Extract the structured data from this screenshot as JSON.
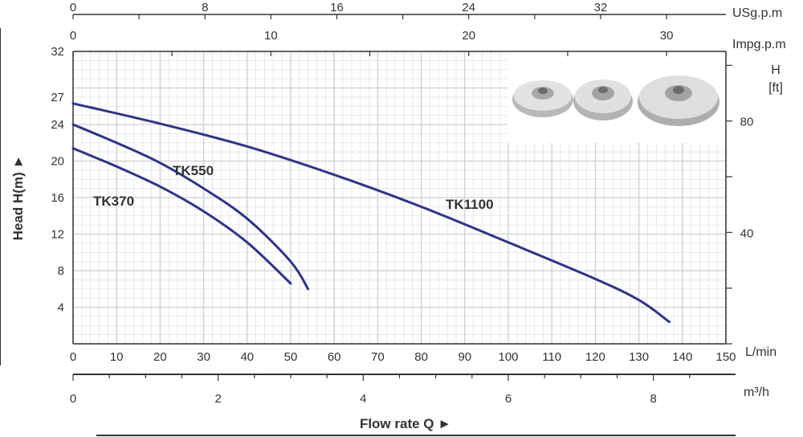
{
  "chart_data": {
    "type": "line",
    "colors": {
      "curve": "#2e3586",
      "grid": "#cfcfcf",
      "frame": "#333333"
    },
    "x": {
      "label": "Flow rate Q ►",
      "range": [
        0,
        150
      ],
      "ticks": [
        0,
        10,
        20,
        30,
        40,
        50,
        60,
        70,
        80,
        90,
        100,
        110,
        120,
        130,
        140,
        150
      ],
      "unit": "L/min"
    },
    "x_m3h": {
      "unit": "m³/h",
      "range": [
        0,
        9
      ],
      "ticks": [
        0,
        2,
        4,
        6,
        8
      ]
    },
    "x_usgpm": {
      "unit": "USg.p.m",
      "range": [
        0,
        39.6
      ],
      "ticks": [
        0,
        8,
        16,
        24,
        32
      ]
    },
    "x_impgpm": {
      "unit": "Impg.p.m",
      "range": [
        0,
        33
      ],
      "ticks": [
        0,
        10,
        20,
        30
      ]
    },
    "y": {
      "label": "Head H(m) ►",
      "range": [
        0,
        32
      ],
      "ticks": [
        4,
        8,
        12,
        16,
        20,
        24,
        27,
        32
      ]
    },
    "y_ft": {
      "unit_line1": "H",
      "unit_line2": "[ft]",
      "range": [
        0,
        105
      ],
      "labeled_ticks": [
        40,
        80
      ]
    },
    "series": [
      {
        "name": "TK370",
        "points": [
          [
            0,
            21.4
          ],
          [
            10,
            19.4
          ],
          [
            20,
            17.2
          ],
          [
            30,
            14.5
          ],
          [
            40,
            11.1
          ],
          [
            50,
            6.6
          ]
        ]
      },
      {
        "name": "TK550",
        "points": [
          [
            0,
            24.0
          ],
          [
            10,
            22.0
          ],
          [
            20,
            19.8
          ],
          [
            30,
            17.0
          ],
          [
            40,
            13.7
          ],
          [
            50,
            9.0
          ],
          [
            54,
            6.0
          ]
        ]
      },
      {
        "name": "TK1100",
        "points": [
          [
            0,
            26.3
          ],
          [
            20,
            24.1
          ],
          [
            40,
            21.6
          ],
          [
            60,
            18.5
          ],
          [
            80,
            15.0
          ],
          [
            100,
            11.1
          ],
          [
            120,
            7.1
          ],
          [
            130,
            4.8
          ],
          [
            137,
            2.4
          ]
        ]
      }
    ],
    "grid": true
  },
  "image": {
    "name": "impellers-photo",
    "items": [
      "impeller-small",
      "impeller-medium",
      "impeller-large"
    ]
  }
}
